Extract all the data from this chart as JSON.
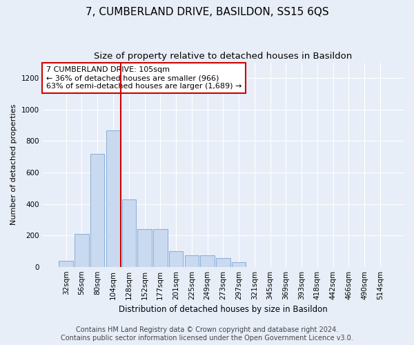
{
  "title": "7, CUMBERLAND DRIVE, BASILDON, SS15 6QS",
  "subtitle": "Size of property relative to detached houses in Basildon",
  "xlabel": "Distribution of detached houses by size in Basildon",
  "ylabel": "Number of detached properties",
  "categories": [
    "32sqm",
    "56sqm",
    "80sqm",
    "104sqm",
    "128sqm",
    "152sqm",
    "177sqm",
    "201sqm",
    "225sqm",
    "249sqm",
    "273sqm",
    "297sqm",
    "321sqm",
    "345sqm",
    "369sqm",
    "393sqm",
    "418sqm",
    "442sqm",
    "466sqm",
    "490sqm",
    "514sqm"
  ],
  "values": [
    40,
    210,
    720,
    870,
    430,
    240,
    240,
    100,
    75,
    75,
    55,
    30,
    0,
    0,
    0,
    0,
    0,
    0,
    0,
    0,
    0
  ],
  "bar_color": "#c9d9f0",
  "bar_edge_color": "#7ba3d0",
  "vline_x_index": 3,
  "vline_color": "#cc0000",
  "annotation_text": "7 CUMBERLAND DRIVE: 105sqm\n← 36% of detached houses are smaller (966)\n63% of semi-detached houses are larger (1,689) →",
  "annotation_box_facecolor": "#ffffff",
  "annotation_box_edgecolor": "#cc0000",
  "background_color": "#e8eef8",
  "ylim": [
    0,
    1300
  ],
  "yticks": [
    0,
    200,
    400,
    600,
    800,
    1000,
    1200
  ],
  "footer_line1": "Contains HM Land Registry data © Crown copyright and database right 2024.",
  "footer_line2": "Contains public sector information licensed under the Open Government Licence v3.0.",
  "title_fontsize": 11,
  "subtitle_fontsize": 9.5,
  "ylabel_fontsize": 8,
  "xlabel_fontsize": 8.5,
  "tick_fontsize": 7.5,
  "annotation_fontsize": 8,
  "footer_fontsize": 7
}
